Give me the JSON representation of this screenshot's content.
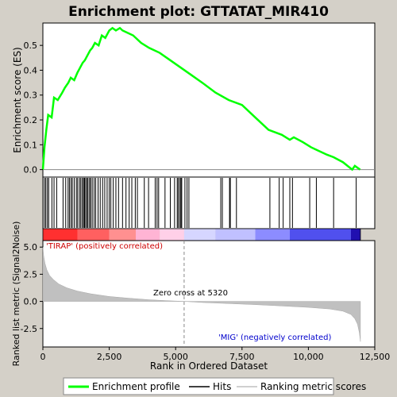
{
  "chart_data": {
    "type": "line",
    "title": "Enrichment plot: GTTATAT_MIR410",
    "xlabel": "Rank in Ordered Dataset",
    "ylabel_top": "Enrichment score (ES)",
    "ylabel_bottom": "Ranked list metric (Signal2Noise)",
    "x_ticks": [
      "0",
      "2,500",
      "5,000",
      "7,500",
      "10,000",
      "12,500"
    ],
    "x_tick_values": [
      0,
      2500,
      5000,
      7500,
      10000,
      12500
    ],
    "xlim": [
      0,
      12500
    ],
    "es_y_ticks": [
      "0.0",
      "0.1",
      "0.2",
      "0.3",
      "0.4",
      "0.5"
    ],
    "es_y_tick_values": [
      0.0,
      0.1,
      0.2,
      0.3,
      0.4,
      0.5
    ],
    "es_ylim": [
      -0.03,
      0.59
    ],
    "metric_y_ticks": [
      "5.0",
      "2.5",
      "0.0",
      "-2.5"
    ],
    "metric_y_tick_values": [
      5.0,
      2.5,
      0.0,
      -2.5
    ],
    "metric_ylim": [
      -4.2,
      5.6
    ],
    "zero_cross_label": "Zero cross at 5320",
    "zero_cross": 5320,
    "pos_label": "'TIRAP' (positively correlated)",
    "neg_label": "'MIG' (negatively correlated)",
    "legend": [
      "Enrichment profile",
      "Hits",
      "Ranking metric scores"
    ],
    "colors": {
      "profile": "#00ff00",
      "hits": "#000000",
      "metric": "#c0c0c0",
      "pos": "#ff0000",
      "neg": "#0000ff",
      "zero_line": "#888888"
    },
    "series": [
      {
        "name": "Enrichment profile",
        "x": [
          0,
          60,
          130,
          200,
          330,
          420,
          560,
          730,
          830,
          960,
          1050,
          1180,
          1300,
          1400,
          1500,
          1580,
          1680,
          1780,
          1860,
          1960,
          2100,
          2220,
          2350,
          2500,
          2620,
          2750,
          2900,
          3000,
          3200,
          3400,
          3700,
          4000,
          4400,
          4800,
          5200,
          5600,
          6000,
          6500,
          7000,
          7500,
          8000,
          8500,
          9000,
          9300,
          9450,
          9800,
          10100,
          10300,
          10700,
          10950,
          11300,
          11650,
          11750,
          11950
        ],
        "y": [
          0.0,
          0.09,
          0.16,
          0.22,
          0.21,
          0.29,
          0.28,
          0.31,
          0.33,
          0.35,
          0.37,
          0.36,
          0.39,
          0.41,
          0.43,
          0.44,
          0.46,
          0.48,
          0.49,
          0.51,
          0.5,
          0.54,
          0.53,
          0.56,
          0.57,
          0.56,
          0.57,
          0.56,
          0.55,
          0.54,
          0.51,
          0.49,
          0.47,
          0.44,
          0.41,
          0.38,
          0.35,
          0.31,
          0.28,
          0.26,
          0.21,
          0.16,
          0.14,
          0.12,
          0.13,
          0.11,
          0.09,
          0.08,
          0.06,
          0.05,
          0.03,
          0.0,
          0.015,
          0.0
        ]
      }
    ],
    "hits": [
      60,
      110,
      170,
      220,
      340,
      420,
      520,
      760,
      860,
      950,
      1000,
      1060,
      1110,
      1180,
      1260,
      1310,
      1380,
      1430,
      1490,
      1530,
      1570,
      1610,
      1660,
      1700,
      1760,
      1800,
      1860,
      1930,
      1990,
      2080,
      2160,
      2250,
      2330,
      2420,
      2500,
      2560,
      2650,
      2750,
      2850,
      3000,
      3130,
      3250,
      3350,
      3480,
      3560,
      3820,
      3980,
      4230,
      4300,
      4360,
      4600,
      4800,
      4960,
      5060,
      5100,
      5160,
      5200,
      5230,
      5350,
      5430,
      5500,
      6700,
      6760,
      7030,
      7060,
      7290,
      8550,
      8900,
      9050,
      9300,
      9400,
      10050,
      10300,
      10950,
      11800
    ],
    "metric_curve": {
      "x": [
        0,
        30,
        80,
        150,
        250,
        400,
        600,
        900,
        1300,
        1800,
        2500,
        3200,
        4000,
        4800,
        5320,
        6000,
        7000,
        8000,
        9000,
        10000,
        10800,
        11300,
        11600,
        11750,
        11850,
        11920,
        11960
      ],
      "y": [
        5.0,
        4.2,
        3.5,
        2.9,
        2.4,
        2.0,
        1.6,
        1.25,
        0.95,
        0.7,
        0.45,
        0.3,
        0.15,
        0.05,
        0.0,
        -0.1,
        -0.2,
        -0.3,
        -0.42,
        -0.55,
        -0.7,
        -0.9,
        -1.2,
        -1.6,
        -2.1,
        -2.9,
        -3.7
      ]
    },
    "n_ranks": 11960
  }
}
